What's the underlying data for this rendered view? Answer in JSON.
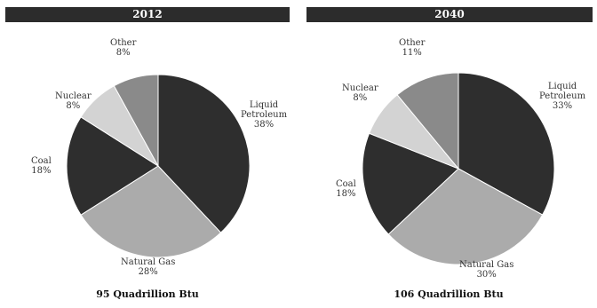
{
  "chart_data": [
    {
      "type": "pie",
      "title": "2012",
      "subtitle": "95 Quadrillion Btu",
      "slices": [
        {
          "label": "Liquid Petroleum",
          "label_lines": [
            "Liquid",
            "Petroleum"
          ],
          "value": 38,
          "value_label": "38%",
          "color": "#2e2e2e"
        },
        {
          "label": "Natural Gas",
          "label_lines": [
            "Natural Gas"
          ],
          "value": 28,
          "value_label": "28%",
          "color": "#ababab"
        },
        {
          "label": "Coal",
          "label_lines": [
            "Coal"
          ],
          "value": 18,
          "value_label": "18%",
          "color": "#2e2e2e"
        },
        {
          "label": "Nuclear",
          "label_lines": [
            "Nuclear"
          ],
          "value": 8,
          "value_label": "8%",
          "color": "#d3d3d3"
        },
        {
          "label": "Other",
          "label_lines": [
            "Other"
          ],
          "value": 8,
          "value_label": "8%",
          "color": "#8a8a8a"
        }
      ]
    },
    {
      "type": "pie",
      "title": "2040",
      "subtitle": "106 Quadrillion Btu",
      "slices": [
        {
          "label": "Liquid Petroleum",
          "label_lines": [
            "Liquid",
            "Petroleum"
          ],
          "value": 33,
          "value_label": "33%",
          "color": "#2e2e2e"
        },
        {
          "label": "Natural Gas",
          "label_lines": [
            "Natural Gas"
          ],
          "value": 30,
          "value_label": "30%",
          "color": "#ababab"
        },
        {
          "label": "Coal",
          "label_lines": [
            "Coal"
          ],
          "value": 18,
          "value_label": "18%",
          "color": "#2e2e2e"
        },
        {
          "label": "Nuclear",
          "label_lines": [
            "Nuclear"
          ],
          "value": 8,
          "value_label": "8%",
          "color": "#d3d3d3"
        },
        {
          "label": "Other",
          "label_lines": [
            "Other"
          ],
          "value": 11,
          "value_label": "11%",
          "color": "#8a8a8a"
        }
      ]
    }
  ]
}
